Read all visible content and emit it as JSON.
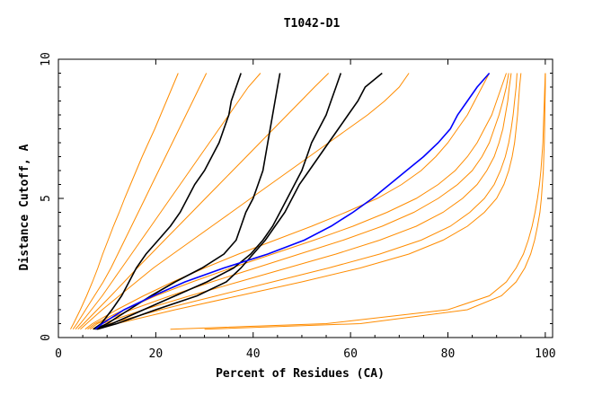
{
  "chart_data": {
    "type": "line",
    "title": "T1042-D1",
    "xlabel": "Percent of Residues (CA)",
    "ylabel": "Distance Cutoff, A",
    "xlim": [
      0,
      101.5
    ],
    "ylim": [
      0,
      10
    ],
    "x_ticks": [
      0,
      20,
      40,
      60,
      80,
      100
    ],
    "y_ticks": [
      0,
      5,
      10
    ],
    "grid": false,
    "legend": "none",
    "colors": {
      "bulk": "#ff8c00",
      "highlight_black": "#000000",
      "highlight_blue": "#0000ff"
    },
    "y": [
      0.3,
      0.5,
      1.0,
      1.5,
      2.0,
      2.5,
      3.0,
      3.5,
      4.0,
      4.5,
      5.0,
      5.5,
      6.0,
      6.5,
      7.0,
      7.5,
      8.0,
      8.5,
      9.0,
      9.5
    ],
    "series": [
      {
        "role": "bulk",
        "x": [
          2.5,
          3.1,
          4.5,
          5.8,
          7.0,
          8.1,
          9.1,
          10.2,
          11.3,
          12.5,
          13.6,
          14.8,
          16.0,
          17.2,
          18.5,
          19.8,
          21.0,
          22.2,
          23.4,
          24.6
        ]
      },
      {
        "role": "bulk",
        "x": [
          3.0,
          3.8,
          5.6,
          7.4,
          9.2,
          10.8,
          12.2,
          13.6,
          15.0,
          16.4,
          17.8,
          19.2,
          20.6,
          22.0,
          23.4,
          24.8,
          26.2,
          27.6,
          29.0,
          30.4
        ]
      },
      {
        "role": "bulk",
        "x": [
          3.5,
          4.5,
          6.8,
          9.0,
          11.0,
          13.0,
          15.0,
          17.0,
          19.0,
          21.0,
          23.0,
          25.0,
          27.0,
          29.0,
          31.0,
          33.0,
          35.0,
          37.0,
          39.0,
          41.5
        ]
      },
      {
        "role": "bulk",
        "x": [
          4.0,
          5.2,
          8.0,
          10.8,
          13.5,
          16.2,
          19.0,
          21.8,
          24.6,
          27.4,
          30.2,
          33.0,
          35.8,
          38.6,
          41.4,
          44.2,
          47.0,
          49.8,
          52.6,
          55.5
        ]
      },
      {
        "role": "bulk",
        "x": [
          4.5,
          5.8,
          9.0,
          12.5,
          16.0,
          19.5,
          23.5,
          27.5,
          31.5,
          35.5,
          39.5,
          43.5,
          47.5,
          51.5,
          55.5,
          59.5,
          63.5,
          67.0,
          70.0,
          72.0
        ]
      },
      {
        "role": "bulk",
        "x": [
          5.5,
          7.0,
          12.0,
          17.5,
          23.5,
          30.0,
          37.0,
          44.5,
          52.0,
          59.0,
          65.5,
          70.5,
          74.5,
          77.5,
          80.0,
          82.0,
          84.0,
          85.5,
          87.0,
          88.5
        ]
      },
      {
        "role": "bulk",
        "x": [
          6.0,
          7.5,
          13.5,
          20.0,
          27.5,
          35.5,
          44.0,
          52.5,
          60.5,
          67.5,
          73.5,
          78.0,
          81.5,
          84.0,
          86.0,
          87.5,
          89.0,
          90.0,
          91.0,
          92.0
        ]
      },
      {
        "role": "bulk",
        "x": [
          6.5,
          8.0,
          15.0,
          23.0,
          31.5,
          40.5,
          49.5,
          58.5,
          66.5,
          73.0,
          78.0,
          82.0,
          85.0,
          87.0,
          88.5,
          89.5,
          90.5,
          91.3,
          92.0,
          92.5
        ]
      },
      {
        "role": "bulk",
        "x": [
          7.0,
          9.0,
          17.5,
          27.0,
          37.0,
          47.0,
          57.0,
          66.0,
          73.5,
          79.0,
          83.0,
          86.0,
          88.0,
          89.5,
          90.5,
          91.3,
          91.8,
          92.3,
          92.6,
          93.0
        ]
      },
      {
        "role": "bulk",
        "x": [
          7.5,
          10.5,
          21.0,
          32.5,
          44.0,
          55.5,
          66.0,
          74.5,
          80.5,
          84.5,
          87.5,
          89.5,
          90.8,
          91.8,
          92.5,
          93.0,
          93.4,
          93.7,
          94.0,
          94.2
        ]
      },
      {
        "role": "bulk",
        "x": [
          8.0,
          12.0,
          24.0,
          37.0,
          50.0,
          62.0,
          72.0,
          79.0,
          84.0,
          87.5,
          90.0,
          91.5,
          92.5,
          93.2,
          93.7,
          94.0,
          94.3,
          94.5,
          94.7,
          95.0
        ]
      },
      {
        "role": "bulk",
        "x": [
          23.0,
          55.0,
          80.0,
          88.5,
          92.0,
          94.0,
          95.5,
          96.5,
          97.3,
          97.9,
          98.4,
          98.8,
          99.1,
          99.3,
          99.5,
          99.6,
          99.7,
          99.8,
          99.9,
          100.0
        ]
      },
      {
        "role": "bulk",
        "x": [
          30.0,
          62.0,
          84.0,
          91.0,
          94.0,
          95.8,
          97.0,
          97.8,
          98.4,
          98.9,
          99.2,
          99.4,
          99.6,
          99.7,
          99.8,
          99.85,
          99.9,
          99.95,
          100.0,
          100.0
        ]
      },
      {
        "role": "highlight_black",
        "x": [
          7.2,
          8.8,
          11.0,
          13.0,
          14.5,
          16.0,
          18.0,
          20.5,
          23.0,
          25.0,
          26.5,
          28.0,
          30.0,
          31.5,
          33.0,
          34.0,
          35.0,
          35.5,
          36.5,
          37.5
        ]
      },
      {
        "role": "highlight_black",
        "x": [
          7.5,
          10.0,
          14.5,
          19.0,
          24.0,
          29.5,
          34.0,
          36.5,
          37.5,
          38.5,
          40.0,
          41.0,
          42.0,
          42.5,
          43.0,
          43.5,
          44.0,
          44.5,
          45.0,
          45.5
        ]
      },
      {
        "role": "highlight_black",
        "x": [
          7.8,
          11.0,
          17.5,
          24.0,
          30.5,
          36.0,
          39.5,
          42.0,
          44.0,
          45.5,
          47.0,
          48.5,
          50.0,
          51.0,
          52.0,
          53.5,
          55.0,
          56.0,
          57.0,
          58.0
        ]
      },
      {
        "role": "highlight_black",
        "x": [
          8.0,
          12.0,
          20.0,
          28.5,
          34.5,
          37.5,
          40.0,
          42.5,
          44.5,
          46.5,
          48.0,
          49.5,
          51.5,
          53.5,
          55.5,
          57.5,
          59.5,
          61.5,
          63.0,
          66.5
        ]
      },
      {
        "role": "highlight_blue",
        "x": [
          7.6,
          9.0,
          13.5,
          19.5,
          26.0,
          34.0,
          43.0,
          50.5,
          56.0,
          60.5,
          64.5,
          68.0,
          71.5,
          75.0,
          78.0,
          80.5,
          82.0,
          84.0,
          86.0,
          88.5
        ]
      }
    ]
  }
}
